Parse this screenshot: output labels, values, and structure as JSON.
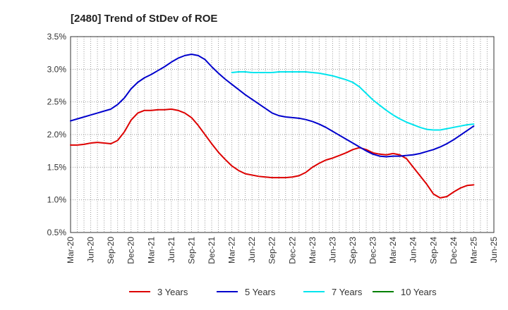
{
  "chart_data": {
    "type": "line",
    "title": "[2480]  Trend of StDev of ROE",
    "xlabel": "",
    "ylabel": "",
    "x_ticks": [
      "Mar-20",
      "Jun-20",
      "Sep-20",
      "Dec-20",
      "Mar-21",
      "Jun-21",
      "Sep-21",
      "Dec-21",
      "Mar-22",
      "Jun-22",
      "Sep-22",
      "Dec-22",
      "Mar-23",
      "Jun-23",
      "Sep-23",
      "Dec-23",
      "Mar-24",
      "Jun-24",
      "Sep-24",
      "Dec-24",
      "Mar-25",
      "Jun-25"
    ],
    "y_ticks": [
      "0.5%",
      "1.0%",
      "1.5%",
      "2.0%",
      "2.5%",
      "3.0%",
      "3.5%"
    ],
    "ylim": [
      0.5,
      3.5
    ],
    "grid": true,
    "legend_position": "bottom",
    "series": [
      {
        "name": "3 Years",
        "color": "#dd0000",
        "points": [
          [
            "Mar-20",
            1.84
          ],
          [
            "Apr-20",
            1.84
          ],
          [
            "May-20",
            1.85
          ],
          [
            "Jun-20",
            1.87
          ],
          [
            "Jul-20",
            1.88
          ],
          [
            "Aug-20",
            1.87
          ],
          [
            "Sep-20",
            1.86
          ],
          [
            "Oct-20",
            1.91
          ],
          [
            "Nov-20",
            2.04
          ],
          [
            "Dec-20",
            2.22
          ],
          [
            "Jan-21",
            2.33
          ],
          [
            "Feb-21",
            2.37
          ],
          [
            "Mar-21",
            2.37
          ],
          [
            "Apr-21",
            2.38
          ],
          [
            "May-21",
            2.38
          ],
          [
            "Jun-21",
            2.39
          ],
          [
            "Jul-21",
            2.37
          ],
          [
            "Aug-21",
            2.33
          ],
          [
            "Sep-21",
            2.26
          ],
          [
            "Oct-21",
            2.14
          ],
          [
            "Nov-21",
            2.0
          ],
          [
            "Dec-21",
            1.86
          ],
          [
            "Jan-22",
            1.73
          ],
          [
            "Feb-22",
            1.62
          ],
          [
            "Mar-22",
            1.52
          ],
          [
            "Apr-22",
            1.45
          ],
          [
            "May-22",
            1.4
          ],
          [
            "Jun-22",
            1.38
          ],
          [
            "Jul-22",
            1.36
          ],
          [
            "Aug-22",
            1.35
          ],
          [
            "Sep-22",
            1.34
          ],
          [
            "Oct-22",
            1.34
          ],
          [
            "Nov-22",
            1.34
          ],
          [
            "Dec-22",
            1.35
          ],
          [
            "Jan-23",
            1.37
          ],
          [
            "Feb-23",
            1.42
          ],
          [
            "Mar-23",
            1.5
          ],
          [
            "Apr-23",
            1.56
          ],
          [
            "May-23",
            1.61
          ],
          [
            "Jun-23",
            1.64
          ],
          [
            "Jul-23",
            1.68
          ],
          [
            "Aug-23",
            1.72
          ],
          [
            "Sep-23",
            1.77
          ],
          [
            "Oct-23",
            1.8
          ],
          [
            "Nov-23",
            1.77
          ],
          [
            "Dec-23",
            1.72
          ],
          [
            "Jan-24",
            1.7
          ],
          [
            "Feb-24",
            1.69
          ],
          [
            "Mar-24",
            1.71
          ],
          [
            "Apr-24",
            1.69
          ],
          [
            "May-24",
            1.63
          ],
          [
            "Jun-24",
            1.5
          ],
          [
            "Jul-24",
            1.37
          ],
          [
            "Aug-24",
            1.24
          ],
          [
            "Sep-24",
            1.09
          ],
          [
            "Oct-24",
            1.03
          ],
          [
            "Nov-24",
            1.05
          ],
          [
            "Dec-24",
            1.12
          ],
          [
            "Jan-25",
            1.18
          ],
          [
            "Feb-25",
            1.22
          ],
          [
            "Mar-25",
            1.23
          ]
        ]
      },
      {
        "name": "5 Years",
        "color": "#0000cc",
        "points": [
          [
            "Mar-20",
            2.21
          ],
          [
            "Apr-20",
            2.24
          ],
          [
            "May-20",
            2.27
          ],
          [
            "Jun-20",
            2.3
          ],
          [
            "Jul-20",
            2.33
          ],
          [
            "Aug-20",
            2.36
          ],
          [
            "Sep-20",
            2.39
          ],
          [
            "Oct-20",
            2.46
          ],
          [
            "Nov-20",
            2.56
          ],
          [
            "Dec-20",
            2.7
          ],
          [
            "Jan-21",
            2.8
          ],
          [
            "Feb-21",
            2.87
          ],
          [
            "Mar-21",
            2.92
          ],
          [
            "Apr-21",
            2.98
          ],
          [
            "May-21",
            3.04
          ],
          [
            "Jun-21",
            3.11
          ],
          [
            "Jul-21",
            3.17
          ],
          [
            "Aug-21",
            3.21
          ],
          [
            "Sep-21",
            3.23
          ],
          [
            "Oct-21",
            3.21
          ],
          [
            "Nov-21",
            3.15
          ],
          [
            "Dec-21",
            3.04
          ],
          [
            "Jan-22",
            2.94
          ],
          [
            "Feb-22",
            2.85
          ],
          [
            "Mar-22",
            2.77
          ],
          [
            "Apr-22",
            2.69
          ],
          [
            "May-22",
            2.61
          ],
          [
            "Jun-22",
            2.54
          ],
          [
            "Jul-22",
            2.47
          ],
          [
            "Aug-22",
            2.4
          ],
          [
            "Sep-22",
            2.33
          ],
          [
            "Oct-22",
            2.29
          ],
          [
            "Nov-22",
            2.27
          ],
          [
            "Dec-22",
            2.26
          ],
          [
            "Jan-23",
            2.25
          ],
          [
            "Feb-23",
            2.23
          ],
          [
            "Mar-23",
            2.2
          ],
          [
            "Apr-23",
            2.16
          ],
          [
            "May-23",
            2.11
          ],
          [
            "Jun-23",
            2.05
          ],
          [
            "Jul-23",
            1.99
          ],
          [
            "Aug-23",
            1.93
          ],
          [
            "Sep-23",
            1.87
          ],
          [
            "Oct-23",
            1.81
          ],
          [
            "Nov-23",
            1.75
          ],
          [
            "Dec-23",
            1.7
          ],
          [
            "Jan-24",
            1.67
          ],
          [
            "Feb-24",
            1.66
          ],
          [
            "Mar-24",
            1.67
          ],
          [
            "Apr-24",
            1.67
          ],
          [
            "May-24",
            1.68
          ],
          [
            "Jun-24",
            1.69
          ],
          [
            "Jul-24",
            1.71
          ],
          [
            "Aug-24",
            1.74
          ],
          [
            "Sep-24",
            1.77
          ],
          [
            "Oct-24",
            1.81
          ],
          [
            "Nov-24",
            1.86
          ],
          [
            "Dec-24",
            1.92
          ],
          [
            "Jan-25",
            1.99
          ],
          [
            "Feb-25",
            2.06
          ],
          [
            "Mar-25",
            2.13
          ]
        ]
      },
      {
        "name": "7 Years",
        "color": "#00e5ee",
        "points": [
          [
            "Mar-22",
            2.95
          ],
          [
            "Apr-22",
            2.96
          ],
          [
            "May-22",
            2.96
          ],
          [
            "Jun-22",
            2.95
          ],
          [
            "Jul-22",
            2.95
          ],
          [
            "Aug-22",
            2.95
          ],
          [
            "Sep-22",
            2.95
          ],
          [
            "Oct-22",
            2.96
          ],
          [
            "Nov-22",
            2.96
          ],
          [
            "Dec-22",
            2.96
          ],
          [
            "Jan-23",
            2.96
          ],
          [
            "Feb-23",
            2.96
          ],
          [
            "Mar-23",
            2.95
          ],
          [
            "Apr-23",
            2.94
          ],
          [
            "May-23",
            2.92
          ],
          [
            "Jun-23",
            2.9
          ],
          [
            "Jul-23",
            2.87
          ],
          [
            "Aug-23",
            2.84
          ],
          [
            "Sep-23",
            2.8
          ],
          [
            "Oct-23",
            2.73
          ],
          [
            "Nov-23",
            2.63
          ],
          [
            "Dec-23",
            2.53
          ],
          [
            "Jan-24",
            2.45
          ],
          [
            "Feb-24",
            2.37
          ],
          [
            "Mar-24",
            2.3
          ],
          [
            "Apr-24",
            2.24
          ],
          [
            "May-24",
            2.19
          ],
          [
            "Jun-24",
            2.15
          ],
          [
            "Jul-24",
            2.11
          ],
          [
            "Aug-24",
            2.08
          ],
          [
            "Sep-24",
            2.07
          ],
          [
            "Oct-24",
            2.07
          ],
          [
            "Nov-24",
            2.09
          ],
          [
            "Dec-24",
            2.11
          ],
          [
            "Jan-25",
            2.13
          ],
          [
            "Feb-25",
            2.15
          ],
          [
            "Mar-25",
            2.16
          ]
        ]
      },
      {
        "name": "10 Years",
        "color": "#008000",
        "points": []
      }
    ]
  }
}
